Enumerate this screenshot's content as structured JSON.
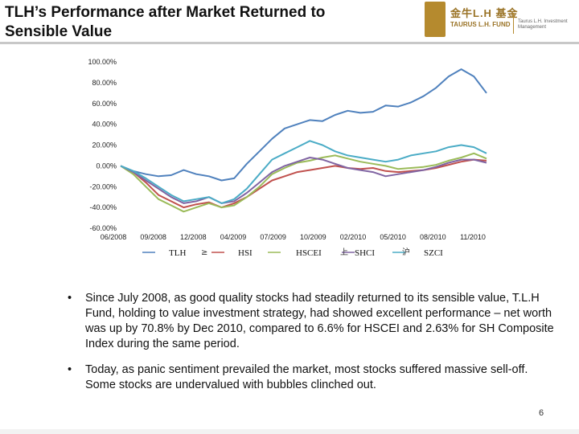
{
  "title": "TLH’s Performance after Market Returned to Sensible Value",
  "logo": {
    "chinese_name": "金牛L.H 基金",
    "english_name": "TAURUS L.H. FUND",
    "small_text": "Taurus L.H. Investment Management"
  },
  "chart_data": {
    "type": "line",
    "title": "",
    "xlabel": "",
    "ylabel": "",
    "x_ticks": [
      "06/2008",
      "09/2008",
      "12/2008",
      "04/2009",
      "07/2009",
      "10/2009",
      "02/2010",
      "05/2010",
      "08/2010",
      "11/2010"
    ],
    "y_ticks": [
      "100.00%",
      "80.00%",
      "60.00%",
      "40.00%",
      "20.00%",
      "0.00%",
      "-20.00%",
      "-40.00%",
      "-60.00%"
    ],
    "ylim": [
      -60,
      100
    ],
    "x_index_range": [
      0,
      29
    ],
    "legend": [
      "TLH",
      "HSI",
      "HSCEI",
      "SHCI",
      "SZCI"
    ],
    "legend_glyphs": [
      "≥",
      "上",
      "沪"
    ],
    "series": [
      {
        "name": "TLH",
        "color": "#4f81bd",
        "x": [
          0,
          1,
          2,
          3,
          4,
          5,
          6,
          7,
          8,
          9,
          10,
          11,
          12,
          13,
          14,
          15,
          16,
          17,
          18,
          19,
          20,
          21,
          22,
          23,
          24,
          25,
          26,
          27,
          28,
          29
        ],
        "values": [
          0,
          -5,
          -8,
          -10,
          -9,
          -4,
          -8,
          -10,
          -14,
          -12,
          2,
          14,
          26,
          36,
          40,
          44,
          43,
          49,
          53,
          51,
          52,
          58,
          57,
          61,
          67,
          75,
          86,
          93,
          86,
          70
        ]
      },
      {
        "name": "HSI",
        "color": "#c0504d",
        "x": [
          0,
          1,
          2,
          3,
          4,
          5,
          6,
          7,
          8,
          9,
          10,
          11,
          12,
          13,
          14,
          15,
          16,
          17,
          18,
          19,
          20,
          21,
          22,
          23,
          24,
          25,
          26,
          27,
          28,
          29
        ],
        "values": [
          0,
          -6,
          -16,
          -28,
          -34,
          -40,
          -37,
          -35,
          -40,
          -36,
          -30,
          -22,
          -14,
          -10,
          -6,
          -4,
          -2,
          0,
          -2,
          -3,
          -2,
          -5,
          -6,
          -5,
          -4,
          -2,
          1,
          4,
          6,
          5
        ]
      },
      {
        "name": "HSCEI",
        "color": "#9bbb59",
        "x": [
          0,
          1,
          2,
          3,
          4,
          5,
          6,
          7,
          8,
          9,
          10,
          11,
          12,
          13,
          14,
          15,
          16,
          17,
          18,
          19,
          20,
          21,
          22,
          23,
          24,
          25,
          26,
          27,
          28,
          29
        ],
        "values": [
          0,
          -8,
          -20,
          -32,
          -38,
          -44,
          -40,
          -36,
          -40,
          -38,
          -30,
          -20,
          -8,
          -2,
          3,
          5,
          8,
          10,
          7,
          4,
          2,
          0,
          -3,
          -2,
          -1,
          1,
          5,
          8,
          12,
          7
        ]
      },
      {
        "name": "SHCI",
        "color": "#8064a2",
        "x": [
          0,
          1,
          2,
          3,
          4,
          5,
          6,
          7,
          8,
          9,
          10,
          11,
          12,
          13,
          14,
          15,
          16,
          17,
          18,
          19,
          20,
          21,
          22,
          23,
          24,
          25,
          26,
          27,
          28,
          29
        ],
        "values": [
          0,
          -6,
          -14,
          -22,
          -30,
          -36,
          -34,
          -30,
          -36,
          -34,
          -26,
          -16,
          -6,
          0,
          4,
          8,
          6,
          2,
          -2,
          -4,
          -6,
          -10,
          -8,
          -6,
          -4,
          -1,
          3,
          6,
          6,
          3
        ]
      },
      {
        "name": "SZCI",
        "color": "#4bacc6",
        "x": [
          0,
          1,
          2,
          3,
          4,
          5,
          6,
          7,
          8,
          9,
          10,
          11,
          12,
          13,
          14,
          15,
          16,
          17,
          18,
          19,
          20,
          21,
          22,
          23,
          24,
          25,
          26,
          27,
          28,
          29
        ],
        "values": [
          0,
          -5,
          -12,
          -20,
          -28,
          -34,
          -32,
          -30,
          -36,
          -32,
          -22,
          -8,
          6,
          12,
          18,
          24,
          20,
          14,
          10,
          8,
          6,
          4,
          6,
          10,
          12,
          14,
          18,
          20,
          18,
          12
        ]
      }
    ]
  },
  "bullets": [
    "Since July 2008,  as good quality stocks had steadily returned to its sensible value, T.L.H Fund, holding to value investment strategy, had showed excellent performance – net worth was up by 70.8% by Dec 2010, compared to 6.6% for HSCEI and 2.63% for SH Composite Index during the same period.",
    "Today, as panic sentiment prevailed the market, most stocks suffered massive sell-off.  Some stocks are undervalued with bubbles clinched out."
  ],
  "bullet_symbol": "•",
  "page_number": "6"
}
